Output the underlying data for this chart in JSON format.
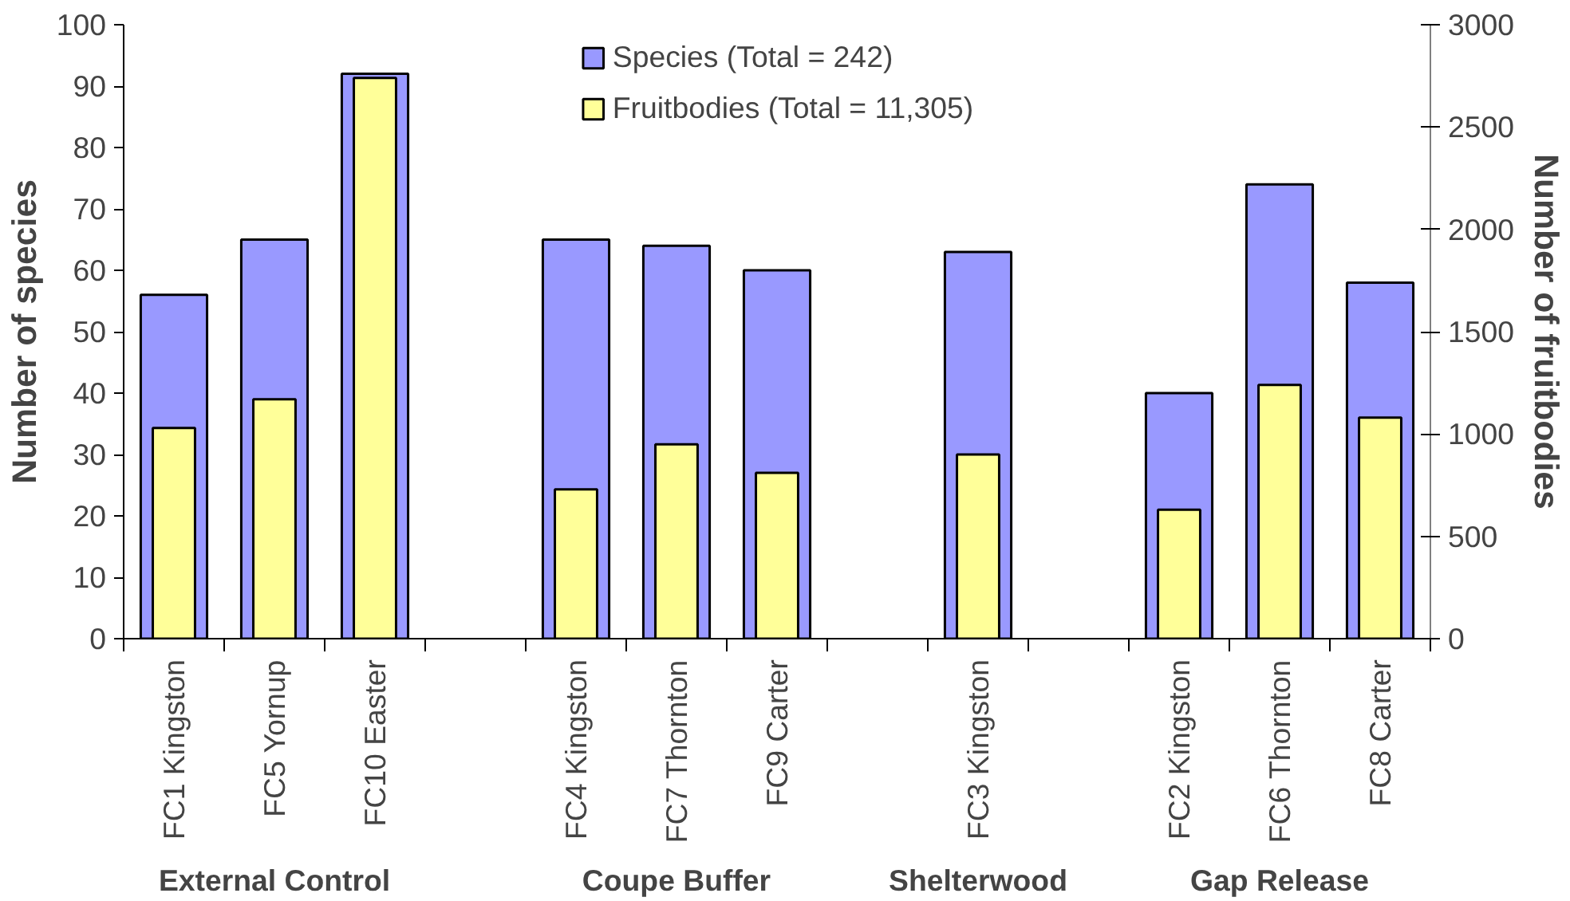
{
  "chart_data": {
    "type": "bar",
    "categories": [
      "FC1 Kingston",
      "FC5 Yornup",
      "FC10 Easter",
      null,
      "FC4 Kingston",
      "FC7 Thornton",
      "FC9 Carter",
      null,
      "FC3 Kingston",
      null,
      "FC2 Kingston",
      "FC6 Thornton",
      "FC8 Carter"
    ],
    "series": [
      {
        "name": "Species (Total = 242)",
        "color": "#9999ff",
        "values": [
          56,
          65,
          92,
          null,
          65,
          64,
          60,
          null,
          63,
          null,
          40,
          74,
          58
        ]
      },
      {
        "name": "Fruitbodies (Total = 11,305)",
        "color": "#ffff99",
        "axis": "y2",
        "values": [
          1030,
          1170,
          2740,
          null,
          730,
          950,
          810,
          null,
          900,
          null,
          630,
          1240,
          1080
        ]
      }
    ],
    "ylabel": "Number of species",
    "y2label": "Number of fruitbodies",
    "ylim": [
      0,
      100
    ],
    "yticks": [
      0,
      10,
      20,
      30,
      40,
      50,
      60,
      70,
      80,
      90,
      100
    ],
    "y2lim": [
      0,
      3000
    ],
    "y2ticks": [
      0,
      500,
      1000,
      1500,
      2000,
      2500,
      3000
    ],
    "annotations": [
      "External Control",
      "Coupe Buffer",
      "Shelterwood",
      "Gap Release"
    ],
    "legend": "top",
    "grid": false
  }
}
